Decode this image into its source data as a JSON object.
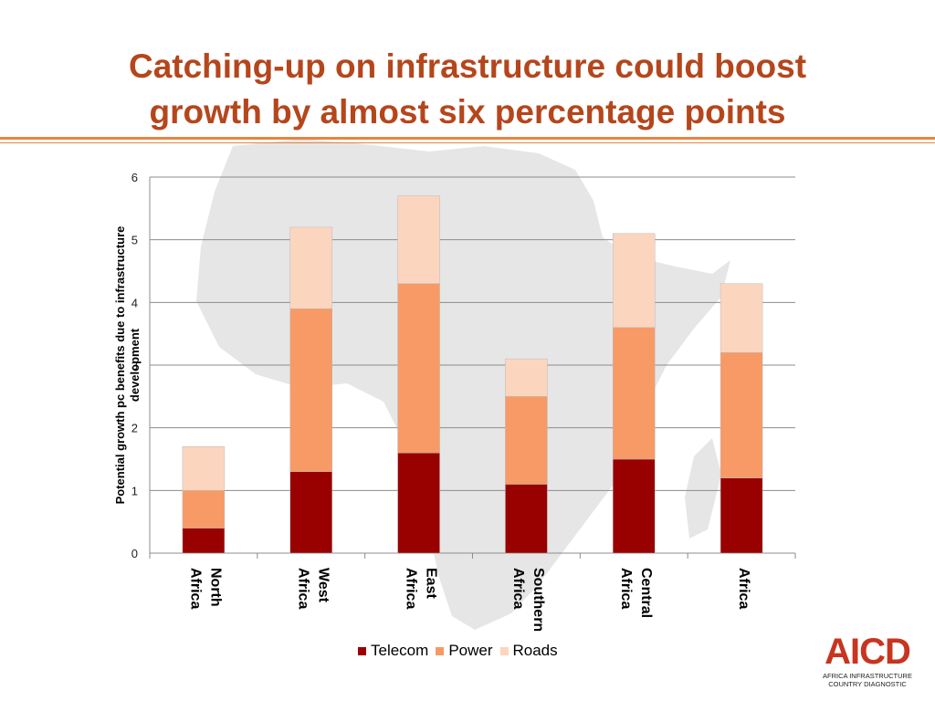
{
  "title": {
    "line1": "Catching-up on infrastructure could boost",
    "line2": "growth by almost six percentage points"
  },
  "logo": {
    "mark": "AICD",
    "sub_line1": "AFRICA INFRASTRUCTURE",
    "sub_line2": "COUNTRY DIAGNOSTIC"
  },
  "colors": {
    "title": "#b5461c",
    "telecom": "#990000",
    "power": "#f79a66",
    "roads": "#fcd5bf",
    "map": "#e6e6e6"
  },
  "chart_data": {
    "type": "bar",
    "stacked": true,
    "categories": [
      [
        "North",
        "Africa"
      ],
      [
        "West",
        "Africa"
      ],
      [
        "East",
        "Africa"
      ],
      [
        "Southern",
        "Africa"
      ],
      [
        "Central",
        "Africa"
      ],
      [
        "Africa"
      ]
    ],
    "series": [
      {
        "name": "Telecom",
        "values": [
          0.4,
          1.3,
          1.6,
          1.1,
          1.5,
          1.2
        ]
      },
      {
        "name": "Power",
        "values": [
          0.6,
          2.6,
          2.7,
          1.4,
          2.1,
          2.0
        ]
      },
      {
        "name": "Roads",
        "values": [
          0.7,
          1.3,
          1.4,
          0.6,
          1.5,
          1.1
        ]
      }
    ],
    "ylabel": "Potential growth pc benefits due to infrastructure development",
    "ylim": [
      0,
      6
    ],
    "yticks": [
      "0",
      "1",
      "2",
      "3",
      "4",
      "5",
      "6"
    ],
    "grid": true,
    "legend_position": "bottom"
  }
}
